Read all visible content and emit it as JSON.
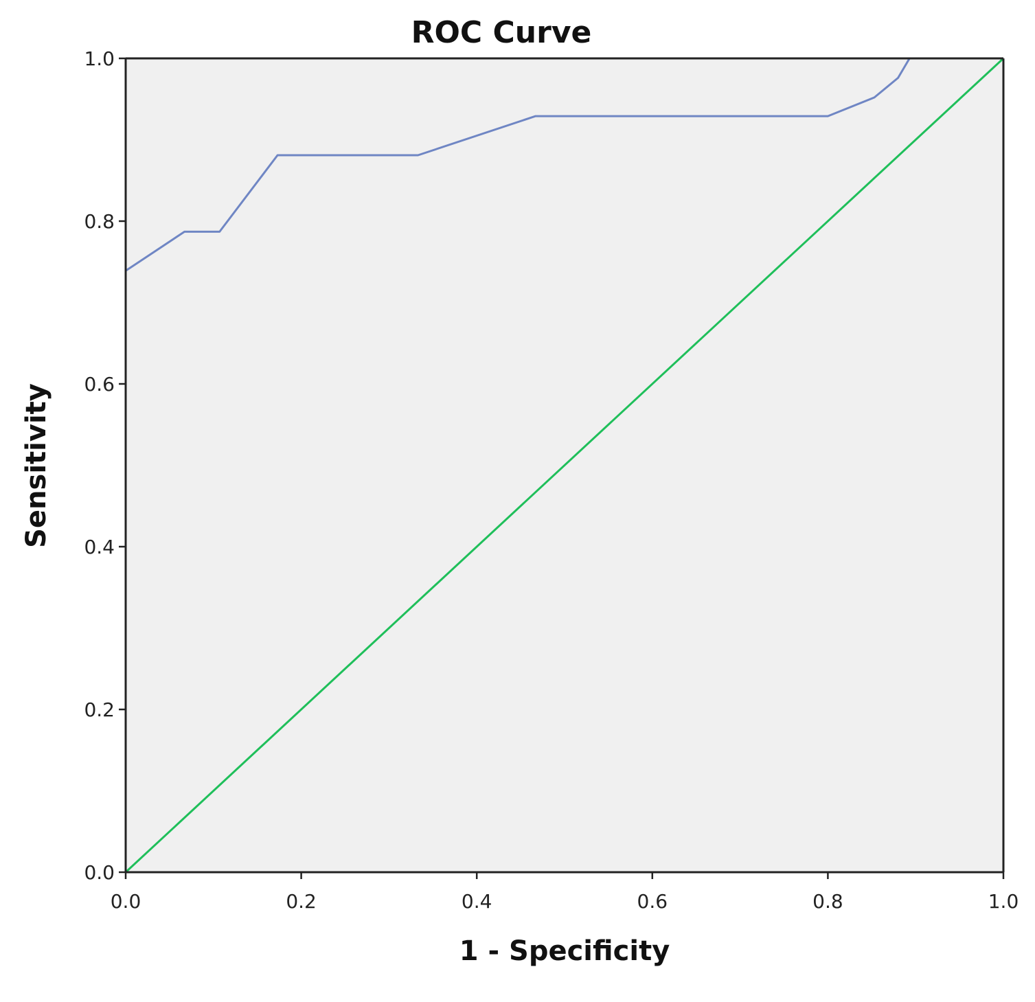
{
  "chart_data": {
    "type": "line",
    "title": "ROC Curve",
    "xlabel": "1 - Specificity",
    "ylabel": "Sensitivity",
    "xlim": [
      0.0,
      1.0
    ],
    "ylim": [
      0.0,
      1.0
    ],
    "xticks": [
      "0.0",
      "0.2",
      "0.4",
      "0.6",
      "0.8",
      "1.0"
    ],
    "yticks": [
      "0.0",
      "0.2",
      "0.4",
      "0.6",
      "0.8",
      "1.0"
    ],
    "grid": false,
    "background_color": "#f0f0f0",
    "series": [
      {
        "color": "#6f86c4",
        "x": [
          0.0,
          0.067,
          0.107,
          0.173,
          0.333,
          0.467,
          0.8,
          0.853,
          0.88,
          0.893,
          1.0
        ],
        "y": [
          0.739,
          0.787,
          0.787,
          0.881,
          0.881,
          0.929,
          0.929,
          0.952,
          0.976,
          1.0,
          1.0
        ]
      },
      {
        "color": "#1fbf5a",
        "x": [
          0.0,
          1.0
        ],
        "y": [
          0.0,
          1.0
        ]
      }
    ]
  }
}
